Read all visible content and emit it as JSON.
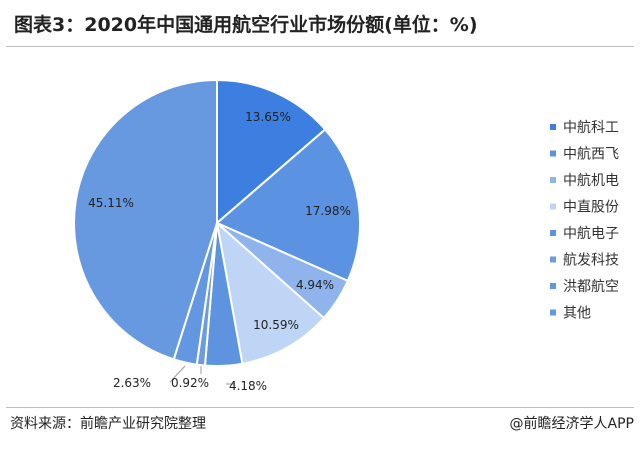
{
  "header": {
    "title": "图表3：2020年中国通用航空行业市场份额(单位：%)"
  },
  "footer": {
    "source": "资料来源：前瞻产业研究院整理",
    "credit": "@前瞻经济学人APP"
  },
  "chart_data": {
    "type": "pie",
    "title": "图表3：2020年中国通用航空行业市场份额(单位：%)",
    "legend_position": "right",
    "slices": [
      {
        "name": "中航科工",
        "value": 13.65,
        "label": "13.65%",
        "color": "#3C7FE0"
      },
      {
        "name": "中航西飞",
        "value": 17.98,
        "label": "17.98%",
        "color": "#5B93E2"
      },
      {
        "name": "中航机电",
        "value": 4.94,
        "label": "4.94%",
        "color": "#8FB4EC"
      },
      {
        "name": "中直股份",
        "value": 10.59,
        "label": "10.59%",
        "color": "#BFD5F5"
      },
      {
        "name": "中航电子",
        "value": 4.18,
        "label": "4.18%",
        "color": "#5E93E0"
      },
      {
        "name": "航发科技",
        "value": 0.92,
        "label": "0.92%",
        "color": "#6C9BE4"
      },
      {
        "name": "洪都航空",
        "value": 2.63,
        "label": "2.63%",
        "color": "#6497E2"
      },
      {
        "name": "其他",
        "value": 45.11,
        "label": "45.11%",
        "color": "#6799E1"
      }
    ]
  }
}
